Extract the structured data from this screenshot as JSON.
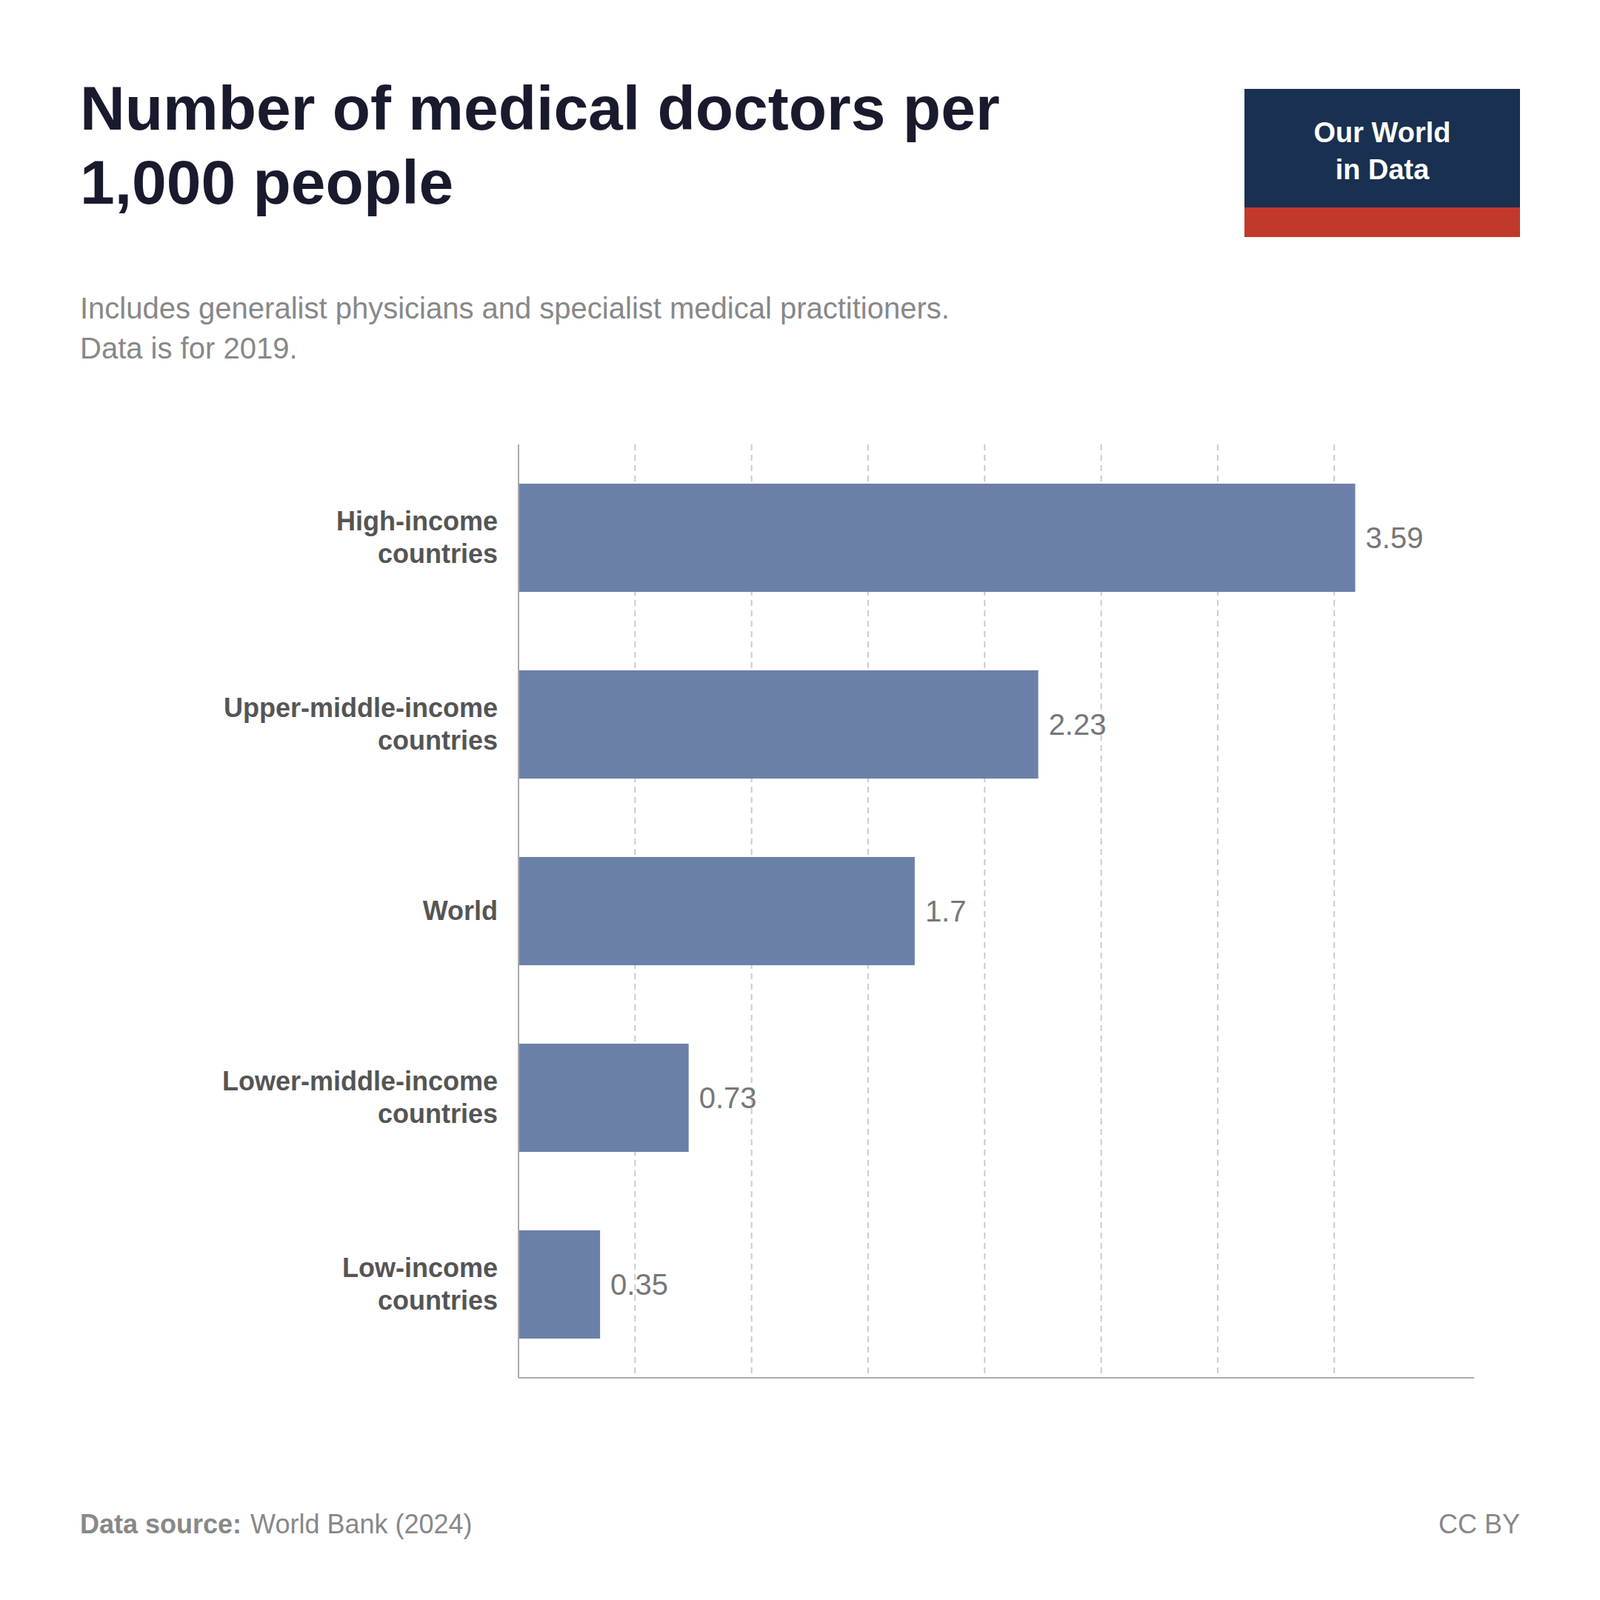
{
  "chart_data": {
    "type": "bar",
    "orientation": "horizontal",
    "title": "Number of medical doctors per\n1,000 people",
    "subtitle": "Includes generalist physicians and specialist medical practitioners.\nData is for 2019.",
    "categories": [
      "High-income\ncountries",
      "Upper-middle-income\ncountries",
      "World",
      "Lower-middle-income\ncountries",
      "Low-income\ncountries"
    ],
    "values": [
      3.59,
      2.23,
      1.7,
      0.73,
      0.35
    ],
    "color": "#6b80a8",
    "xlim": [
      0,
      4.1
    ],
    "xticks": [
      0.5,
      1.0,
      1.5,
      2.0,
      2.5,
      3.0,
      3.5
    ],
    "grid": true,
    "data_labels": true,
    "tick_labels": "y",
    "annotations": [
      "Data source:",
      "World Bank (2024)",
      "CC BY",
      "Our World\nin Data"
    ]
  }
}
